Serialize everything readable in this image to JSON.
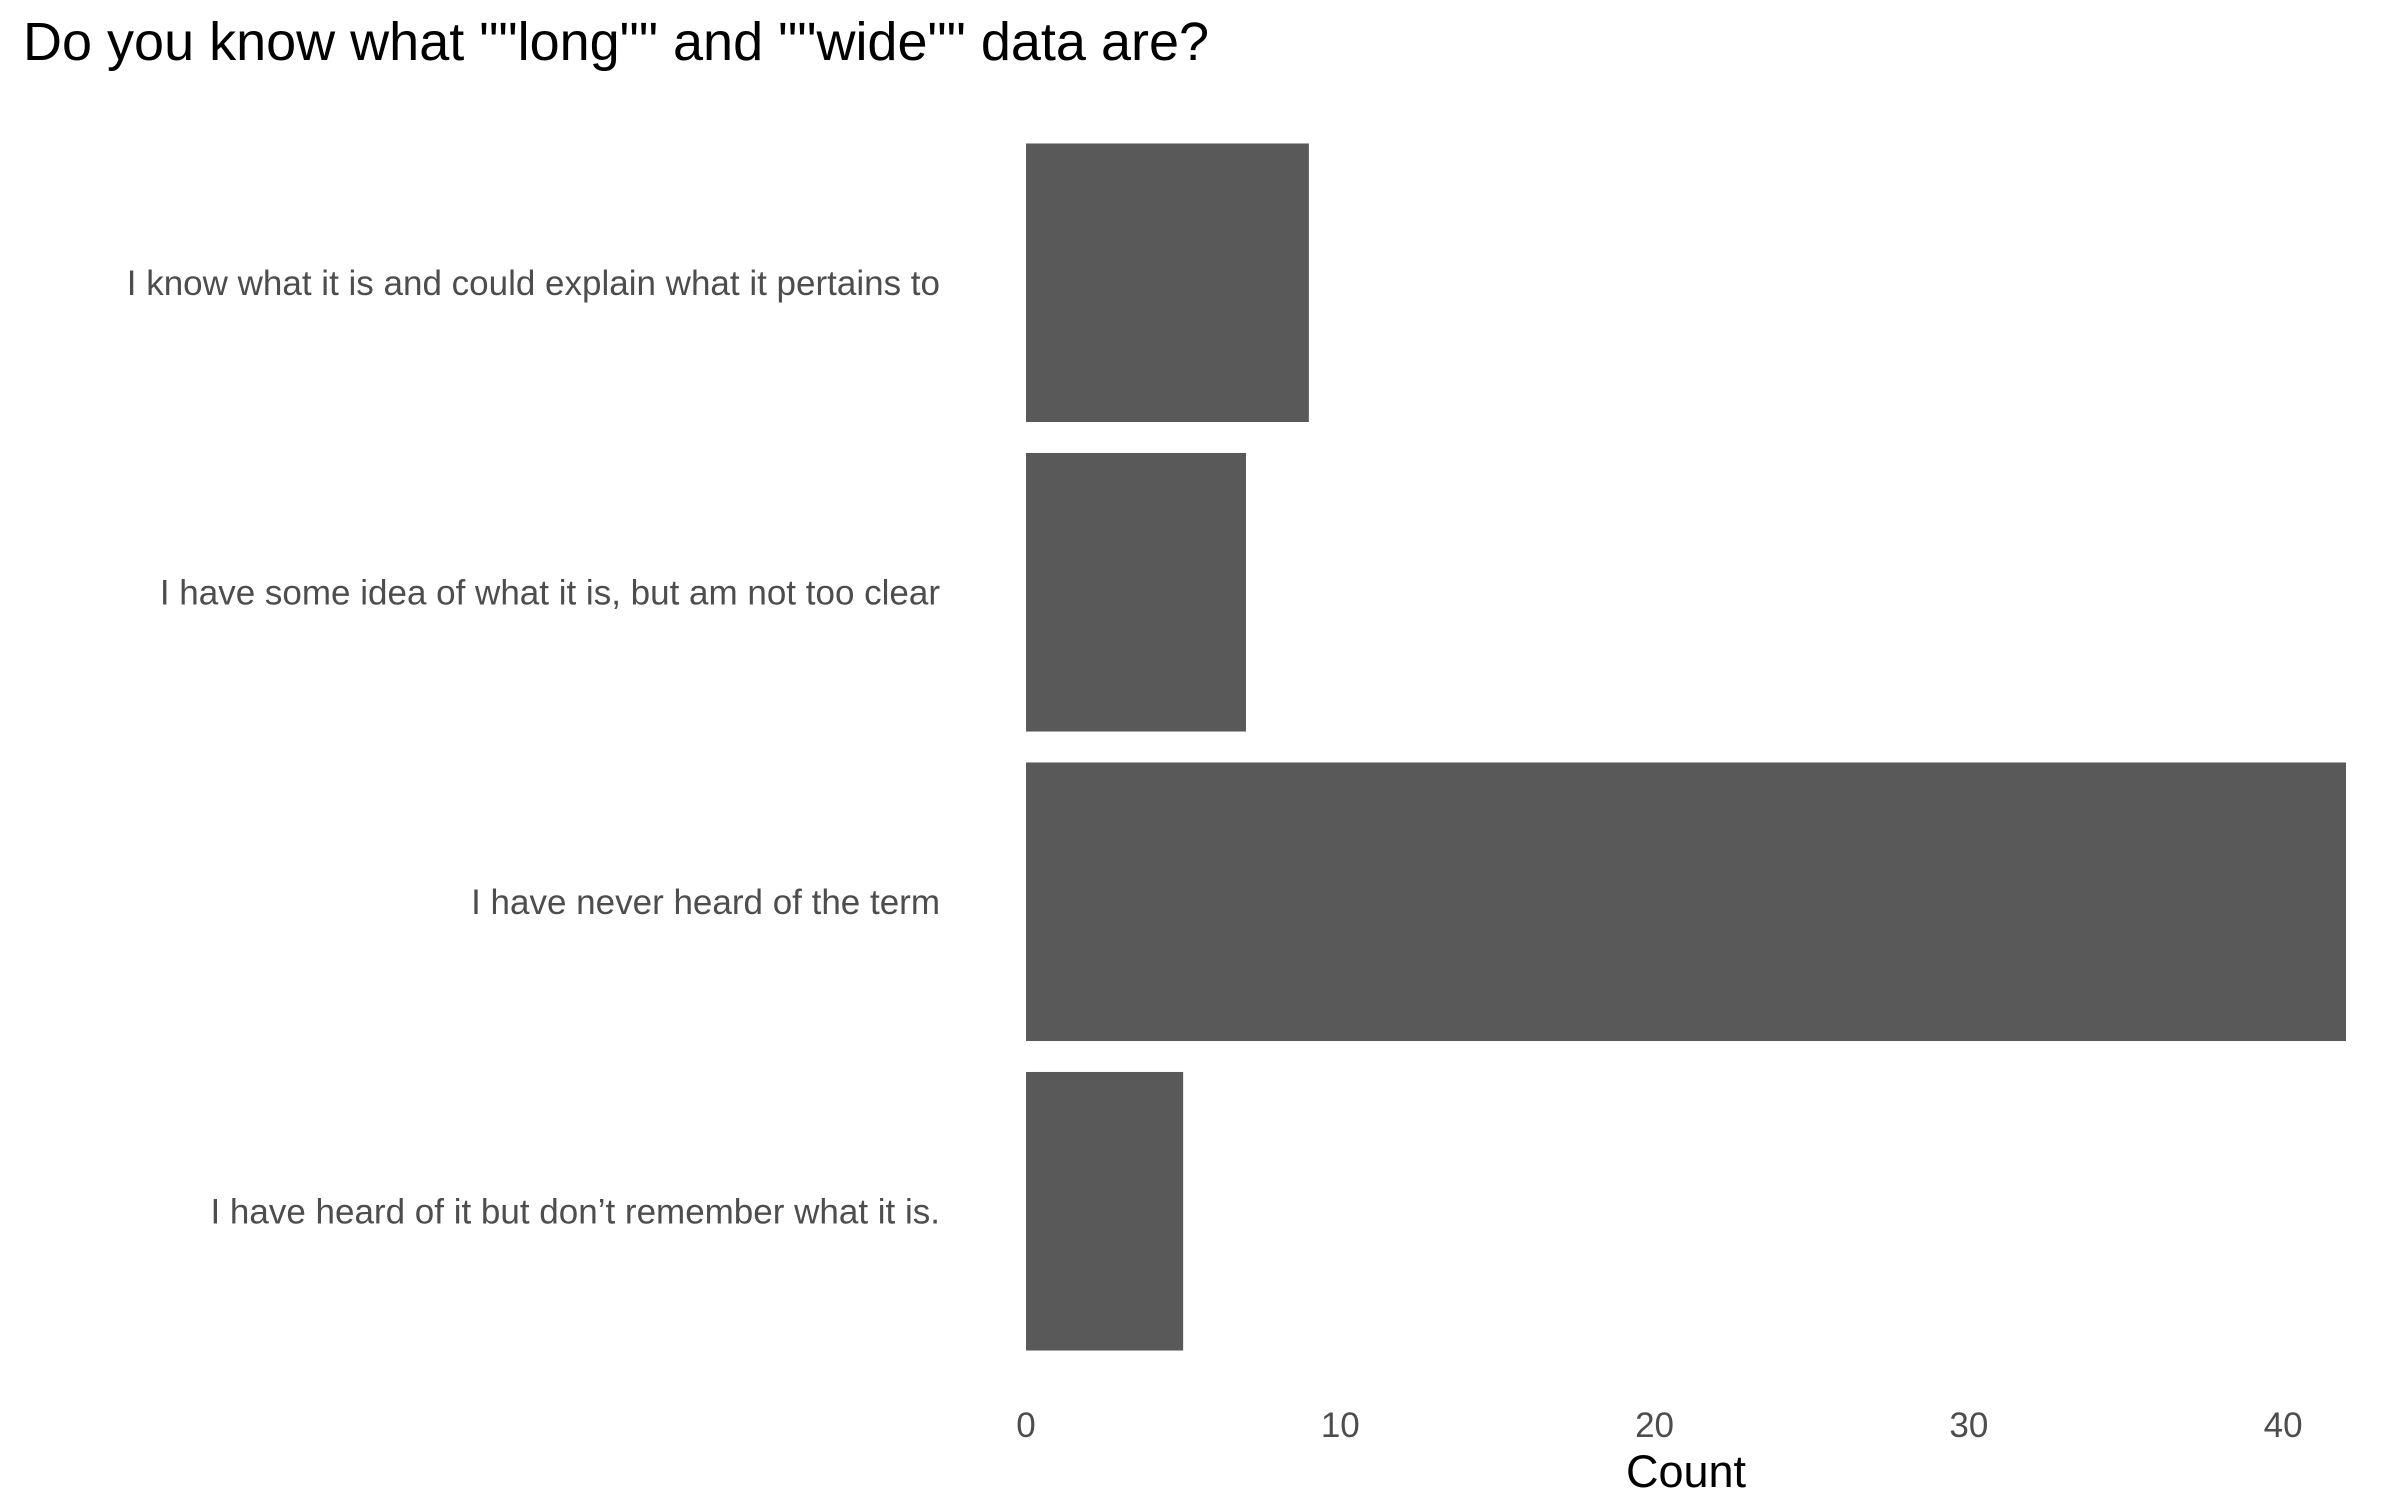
{
  "chart_data": {
    "type": "bar",
    "orientation": "horizontal",
    "title": "Do you know what \"\"long\"\" and \"\"wide\"\" data are?",
    "xlabel": "Count",
    "ylabel": "",
    "categories": [
      "I know what it is and could explain what it pertains to",
      "I have some idea of what it is, but am not too clear",
      "I have never heard of the term",
      "I have heard of it but don’t remember what it is."
    ],
    "values": [
      9,
      7,
      42,
      5
    ],
    "xlim": [
      0,
      42
    ],
    "xticks": [
      "0",
      "10",
      "20",
      "30",
      "40"
    ],
    "bar_color": "#595959",
    "grid": false,
    "legend": "none"
  }
}
